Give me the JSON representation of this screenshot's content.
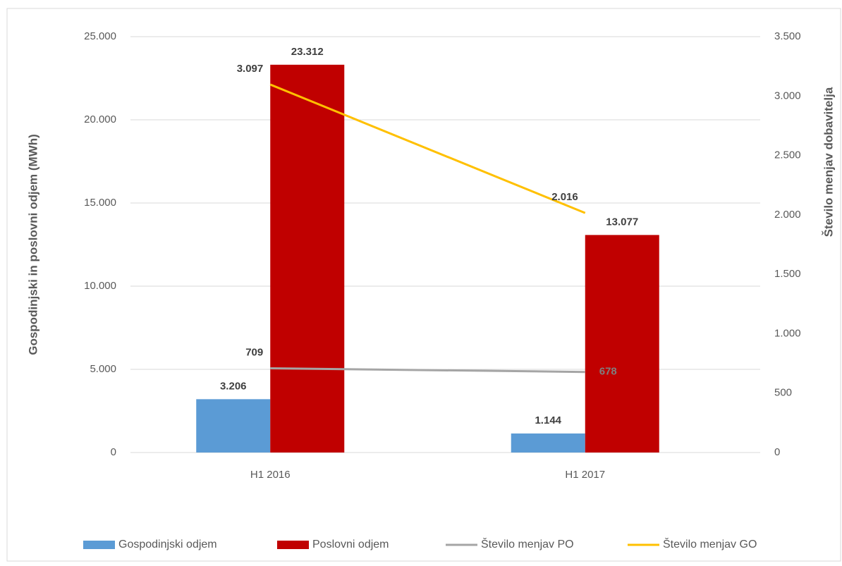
{
  "chart_data": {
    "type": "bar",
    "categories": [
      "H1 2016",
      "H1 2017"
    ],
    "y_label": "Gospodinjski in poslovni odjem (MWh)",
    "y2_label": "Število menjav dobavitelja",
    "series": [
      {
        "name": "Gospodinjski odjem",
        "type": "bar",
        "color": "#5b9bd5",
        "values": [
          3206,
          1144
        ],
        "value_labels": [
          "3.206",
          "1.144"
        ]
      },
      {
        "name": "Poslovni odjem",
        "type": "bar",
        "color": "#c00000",
        "values": [
          23312,
          13077
        ],
        "value_labels": [
          "23.312",
          "13.077"
        ]
      },
      {
        "name": "Število menjav PO",
        "type": "line",
        "axis": "y2",
        "color": "#a5a5a5",
        "values": [
          709,
          678
        ]
      },
      {
        "name": "Število menjav GO",
        "type": "line",
        "axis": "y2",
        "color": "#ffc000",
        "values": [
          3097,
          2016
        ],
        "value_labels": [
          "3.097",
          "2.016"
        ]
      }
    ],
    "ylim": [
      0,
      25000
    ],
    "yticks": [
      0,
      {
        "value": 5000,
        "label": "5.000"
      },
      {
        "value": 10000,
        "label": "10.000"
      },
      {
        "value": 15000,
        "label": "15.000"
      },
      {
        "value": 20000,
        "label": "20.000"
      },
      {
        "value": 25000,
        "label": "25.000"
      }
    ],
    "y2lim": [
      0,
      3500
    ],
    "y2ticks": [
      0,
      500,
      {
        "value": 1000,
        "label": "1.000"
      },
      {
        "value": 1500,
        "label": "1.500"
      },
      {
        "value": 2000,
        "label": "2.000"
      },
      {
        "value": 2500,
        "label": "2.500"
      },
      {
        "value": 3000,
        "label": "3.000"
      },
      {
        "value": 3500,
        "label": "3.500"
      }
    ],
    "grid": true,
    "legend": "bottom"
  }
}
